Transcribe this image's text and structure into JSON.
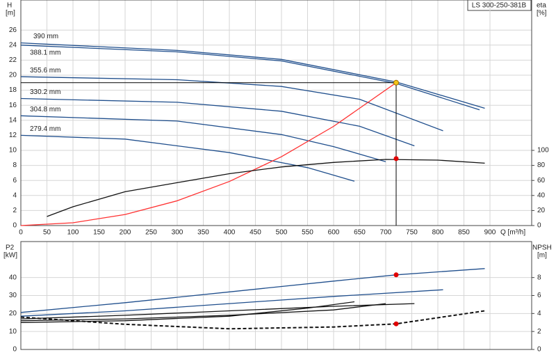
{
  "chart_data": [
    {
      "type": "line",
      "title": "LS 300-250-381B",
      "x_label": "Q [m³/h]",
      "y_label": "H",
      "y_unit": "[m]",
      "y2_label": "eta",
      "y2_unit": "[%]",
      "xlim": [
        0,
        980
      ],
      "xticks": [
        0,
        50,
        100,
        150,
        200,
        250,
        300,
        350,
        400,
        450,
        500,
        550,
        600,
        650,
        700,
        750,
        800,
        850,
        900
      ],
      "ylim": [
        0,
        30
      ],
      "yticks": [
        0,
        2,
        4,
        6,
        8,
        10,
        12,
        14,
        16,
        18,
        20,
        22,
        24,
        26
      ],
      "y2lim": [
        0,
        300
      ],
      "y2ticks": [
        0,
        20,
        40,
        60,
        80,
        100
      ],
      "grid": true,
      "series": [
        {
          "name": "390 mm",
          "color": "#1f4e8c",
          "x": [
            0,
            300,
            500,
            720,
            890
          ],
          "values": [
            24.3,
            23.3,
            22.1,
            19.1,
            15.6
          ]
        },
        {
          "name": "388.1 mm",
          "color": "#1f4e8c",
          "x": [
            0,
            300,
            500,
            720,
            880
          ],
          "values": [
            24.0,
            23.1,
            21.9,
            18.9,
            15.4
          ]
        },
        {
          "name": "355.6 mm",
          "color": "#1f4e8c",
          "x": [
            0,
            300,
            500,
            650,
            810
          ],
          "values": [
            19.8,
            19.4,
            18.5,
            16.8,
            12.6
          ]
        },
        {
          "name": "330.2 mm",
          "color": "#1f4e8c",
          "x": [
            0,
            300,
            500,
            650,
            755
          ],
          "values": [
            16.9,
            16.4,
            15.2,
            13.2,
            10.6
          ]
        },
        {
          "name": "304.8 mm",
          "color": "#1f4e8c",
          "x": [
            0,
            300,
            500,
            600,
            700
          ],
          "values": [
            14.6,
            13.9,
            12.1,
            10.5,
            8.5
          ]
        },
        {
          "name": "279.4 mm",
          "color": "#1f4e8c",
          "x": [
            0,
            200,
            400,
            550,
            640
          ],
          "values": [
            12.0,
            11.5,
            9.7,
            7.7,
            5.9
          ]
        },
        {
          "color": "#ff3030",
          "x": [
            0,
            100,
            200,
            300,
            400,
            500,
            600,
            720
          ],
          "values": [
            0,
            0.37,
            1.47,
            3.3,
            5.86,
            9.16,
            13.19,
            19.0
          ]
        },
        {
          "color": "#111111",
          "axis": "y2",
          "x": [
            50,
            100,
            200,
            300,
            400,
            500,
            600,
            700,
            800,
            890
          ],
          "values": [
            12,
            25,
            45,
            57,
            69,
            78,
            84,
            88,
            87,
            83
          ]
        }
      ],
      "operating_point": {
        "x": 720,
        "h": 19.0,
        "eta": 89,
        "h_color": "#f5c518",
        "eta_color": "#e00000"
      }
    },
    {
      "type": "line",
      "y_label": "P2",
      "y_unit": "[kW]",
      "y2_label": "NPSH",
      "y2_unit": "[m]",
      "xlim": [
        0,
        980
      ],
      "ylim": [
        0,
        60
      ],
      "yticks": [
        0,
        10,
        20,
        30,
        40
      ],
      "y2lim": [
        0,
        12
      ],
      "y2ticks": [
        0,
        2,
        4,
        6,
        8
      ],
      "grid": true,
      "series": [
        {
          "color": "#1f4e8c",
          "x": [
            0,
            200,
            400,
            600,
            720,
            890
          ],
          "values": [
            20.6,
            26,
            32,
            38,
            41.5,
            45
          ]
        },
        {
          "color": "#1f4e8c",
          "x": [
            0,
            200,
            400,
            600,
            810
          ],
          "values": [
            18.5,
            21.5,
            25.5,
            29.5,
            33.2
          ]
        },
        {
          "color": "#111111",
          "x": [
            0,
            200,
            400,
            600,
            755
          ],
          "values": [
            17,
            19,
            21.5,
            24,
            25.5
          ]
        },
        {
          "color": "#111111",
          "x": [
            0,
            200,
            400,
            600,
            700
          ],
          "values": [
            16,
            17,
            19,
            22,
            25.5
          ]
        },
        {
          "color": "#111111",
          "x": [
            0,
            200,
            400,
            550,
            640
          ],
          "values": [
            15,
            16,
            18.5,
            23,
            26.5
          ]
        },
        {
          "color": "#111111",
          "axis": "y2",
          "dashed": true,
          "x": [
            0,
            200,
            400,
            600,
            720,
            890
          ],
          "values": [
            3.6,
            2.8,
            2.3,
            2.5,
            2.85,
            4.3
          ]
        }
      ],
      "operating_point": {
        "x": 720,
        "p2": 41.5,
        "npsh": 2.85,
        "color": "#e00000"
      }
    }
  ]
}
